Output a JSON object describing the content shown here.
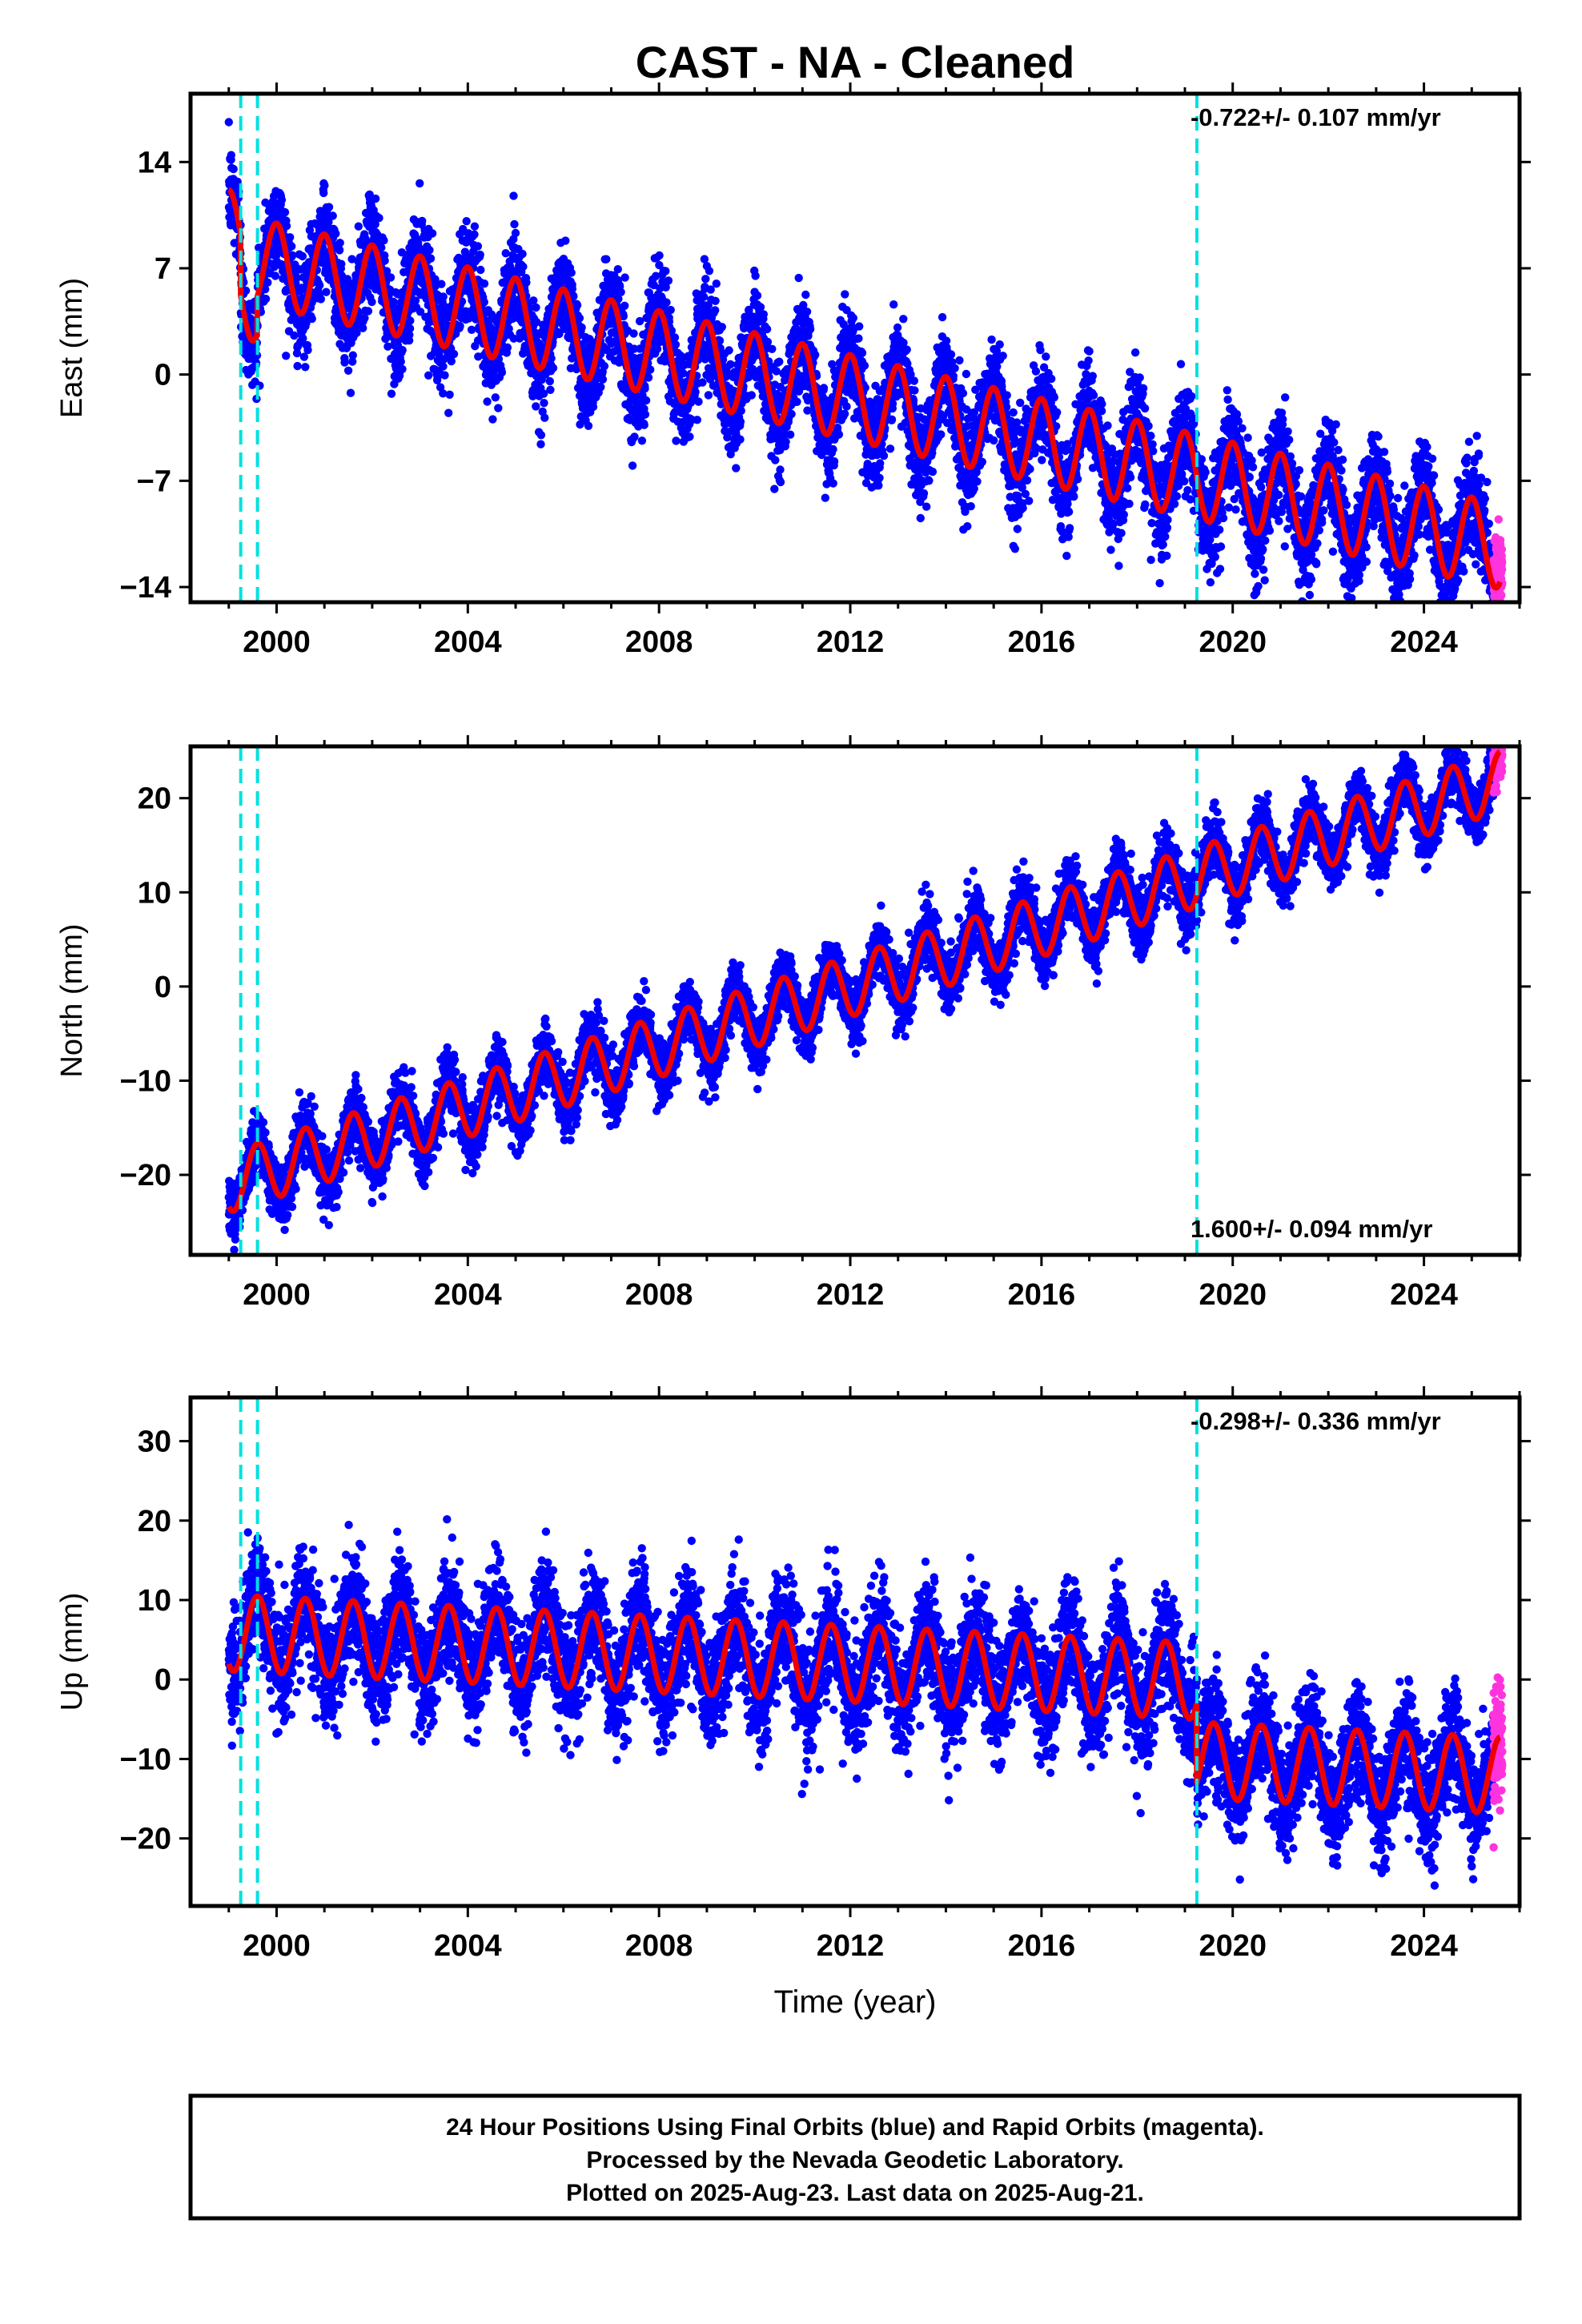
{
  "title": "CAST  - NA - Cleaned",
  "xlabel": "Time (year)",
  "footer": {
    "lines": [
      "24 Hour Positions Using Final Orbits (blue) and Rapid Orbits (magenta).",
      "Processed by the Nevada Geodetic Laboratory.",
      "Plotted on 2025-Aug-23. Last data on 2025-Aug-21."
    ]
  },
  "colors": {
    "final_orbits": "#0000ff",
    "rapid_orbits": "#ff33dd",
    "model_fit": "#ee0000",
    "steps": "#00e0e0",
    "frame": "#000000"
  },
  "chart_data": [
    {
      "type": "scatter",
      "component": "East",
      "ylabel": "East (mm)",
      "xlim": [
        1998.2,
        2026.0
      ],
      "ylim": [
        -15.0,
        18.5
      ],
      "xticks": [
        2000,
        2004,
        2008,
        2012,
        2016,
        2020,
        2024
      ],
      "xtick_labels": [
        "2000",
        "2004",
        "2008",
        "2012",
        "2016",
        "2020",
        "2024"
      ],
      "yticks": [
        -14,
        -7,
        0,
        7,
        14
      ],
      "ytick_labels": [
        "−14",
        "−7",
        "0",
        "7",
        "14"
      ],
      "rate_label": "-0.722+/- 0.107 mm/yr",
      "rate_position": "top-right",
      "step_epochs": [
        1999.25,
        1999.6,
        2019.25
      ],
      "fit": {
        "start": 1999.0,
        "end": 2025.6,
        "intercept_at_2012": 0.0,
        "rate_mm_per_yr": -0.722,
        "annual_amplitude_mm": 2.8,
        "annual_peak_fraction": 0.0,
        "offsets": [
          {
            "epoch": 1999.25,
            "jump_mm": -4.0
          },
          {
            "epoch": 1999.6,
            "jump_mm": 2.5
          }
        ]
      },
      "scatter_mm": 1.6,
      "final_orbits_end": 2025.45,
      "rapid_orbits_end": 2025.64
    },
    {
      "type": "scatter",
      "component": "North",
      "ylabel": "North (mm)",
      "xlim": [
        1998.2,
        2026.0
      ],
      "ylim": [
        -28.5,
        25.5
      ],
      "xticks": [
        2000,
        2004,
        2008,
        2012,
        2016,
        2020,
        2024
      ],
      "xtick_labels": [
        "2000",
        "2004",
        "2008",
        "2012",
        "2016",
        "2020",
        "2024"
      ],
      "yticks": [
        -20,
        -10,
        0,
        10,
        20
      ],
      "ytick_labels": [
        "−20",
        "−10",
        "0",
        "10",
        "20"
      ],
      "rate_label": "1.600+/- 0.094 mm/yr",
      "rate_position": "bottom-right",
      "step_epochs": [
        1999.25,
        1999.6,
        2019.25
      ],
      "fit": {
        "start": 1999.0,
        "end": 2025.6,
        "intercept_at_2012": 0.0,
        "rate_mm_per_yr": 1.6,
        "annual_amplitude_mm": 3.2,
        "annual_peak_fraction": 0.6,
        "offsets": []
      },
      "scatter_mm": 1.6,
      "final_orbits_end": 2025.45,
      "rapid_orbits_end": 2025.64
    },
    {
      "type": "scatter",
      "component": "Up",
      "ylabel": "Up (mm)",
      "xlim": [
        1998.2,
        2026.0
      ],
      "ylim": [
        -28.5,
        35.5
      ],
      "xticks": [
        2000,
        2004,
        2008,
        2012,
        2016,
        2020,
        2024
      ],
      "xtick_labels": [
        "2000",
        "2004",
        "2008",
        "2012",
        "2016",
        "2020",
        "2024"
      ],
      "yticks": [
        -20,
        -10,
        0,
        10,
        20,
        30
      ],
      "ytick_labels": [
        "−20",
        "−10",
        "0",
        "10",
        "20",
        "30"
      ],
      "rate_label": "-0.298+/- 0.336 mm/yr",
      "rate_position": "top-right",
      "step_epochs": [
        1999.25,
        1999.6,
        2019.25
      ],
      "fit": {
        "start": 1999.0,
        "end": 2025.6,
        "intercept_at_2012": 2.0,
        "rate_mm_per_yr": -0.298,
        "annual_amplitude_mm": 4.8,
        "annual_peak_fraction": 0.6,
        "offsets": [
          {
            "epoch": 2019.25,
            "jump_mm": -10.0
          }
        ]
      },
      "scatter_mm": 3.5,
      "final_orbits_end": 2025.45,
      "rapid_orbits_end": 2025.64
    }
  ]
}
